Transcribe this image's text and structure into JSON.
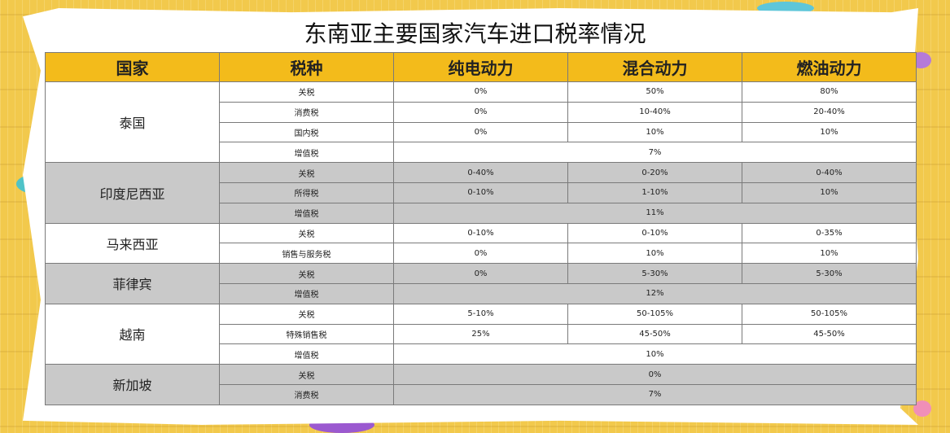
{
  "title": "东南亚主要国家汽车进口税率情况",
  "headers": [
    "国家",
    "税种",
    "纯电动力",
    "混合动力",
    "燃油动力"
  ],
  "groups": [
    {
      "country": "泰国",
      "shade": "white",
      "rows": [
        {
          "tax": "关税",
          "ev": "0%",
          "hybrid": "50%",
          "fuel": "80%"
        },
        {
          "tax": "消费税",
          "ev": "0%",
          "hybrid": "10-40%",
          "fuel": "20-40%"
        },
        {
          "tax": "国内税",
          "ev": "0%",
          "hybrid": "10%",
          "fuel": "10%"
        },
        {
          "tax": "增值税",
          "merged": "7%"
        }
      ]
    },
    {
      "country": "印度尼西亚",
      "shade": "grey",
      "rows": [
        {
          "tax": "关税",
          "ev": "0-40%",
          "hybrid": "0-20%",
          "fuel": "0-40%"
        },
        {
          "tax": "所得税",
          "ev": "0-10%",
          "hybrid": "1-10%",
          "fuel": "10%"
        },
        {
          "tax": "增值税",
          "merged": "11%"
        }
      ]
    },
    {
      "country": "马来西亚",
      "shade": "white",
      "rows": [
        {
          "tax": "关税",
          "ev": "0-10%",
          "hybrid": "0-10%",
          "fuel": "0-35%"
        },
        {
          "tax": "销售与服务税",
          "ev": "0%",
          "hybrid": "10%",
          "fuel": "10%"
        }
      ]
    },
    {
      "country": "菲律宾",
      "shade": "grey",
      "rows": [
        {
          "tax": "关税",
          "ev": "0%",
          "hybrid": "5-30%",
          "fuel": "5-30%"
        },
        {
          "tax": "增值税",
          "merged": "12%"
        }
      ]
    },
    {
      "country": "越南",
      "shade": "white",
      "rows": [
        {
          "tax": "关税",
          "ev": "5-10%",
          "hybrid": "50-105%",
          "fuel": "50-105%"
        },
        {
          "tax": "特殊销售税",
          "ev": "25%",
          "hybrid": "45-50%",
          "fuel": "45-50%"
        },
        {
          "tax": "增值税",
          "merged": "10%"
        }
      ]
    },
    {
      "country": "新加坡",
      "shade": "grey",
      "rows": [
        {
          "tax": "关税",
          "merged": "0%"
        },
        {
          "tax": "消费税",
          "merged": "7%"
        }
      ]
    }
  ],
  "colors": {
    "header": "#f3bb1b",
    "grey_row": "#c9c9c9",
    "background": "#f2c94c"
  }
}
